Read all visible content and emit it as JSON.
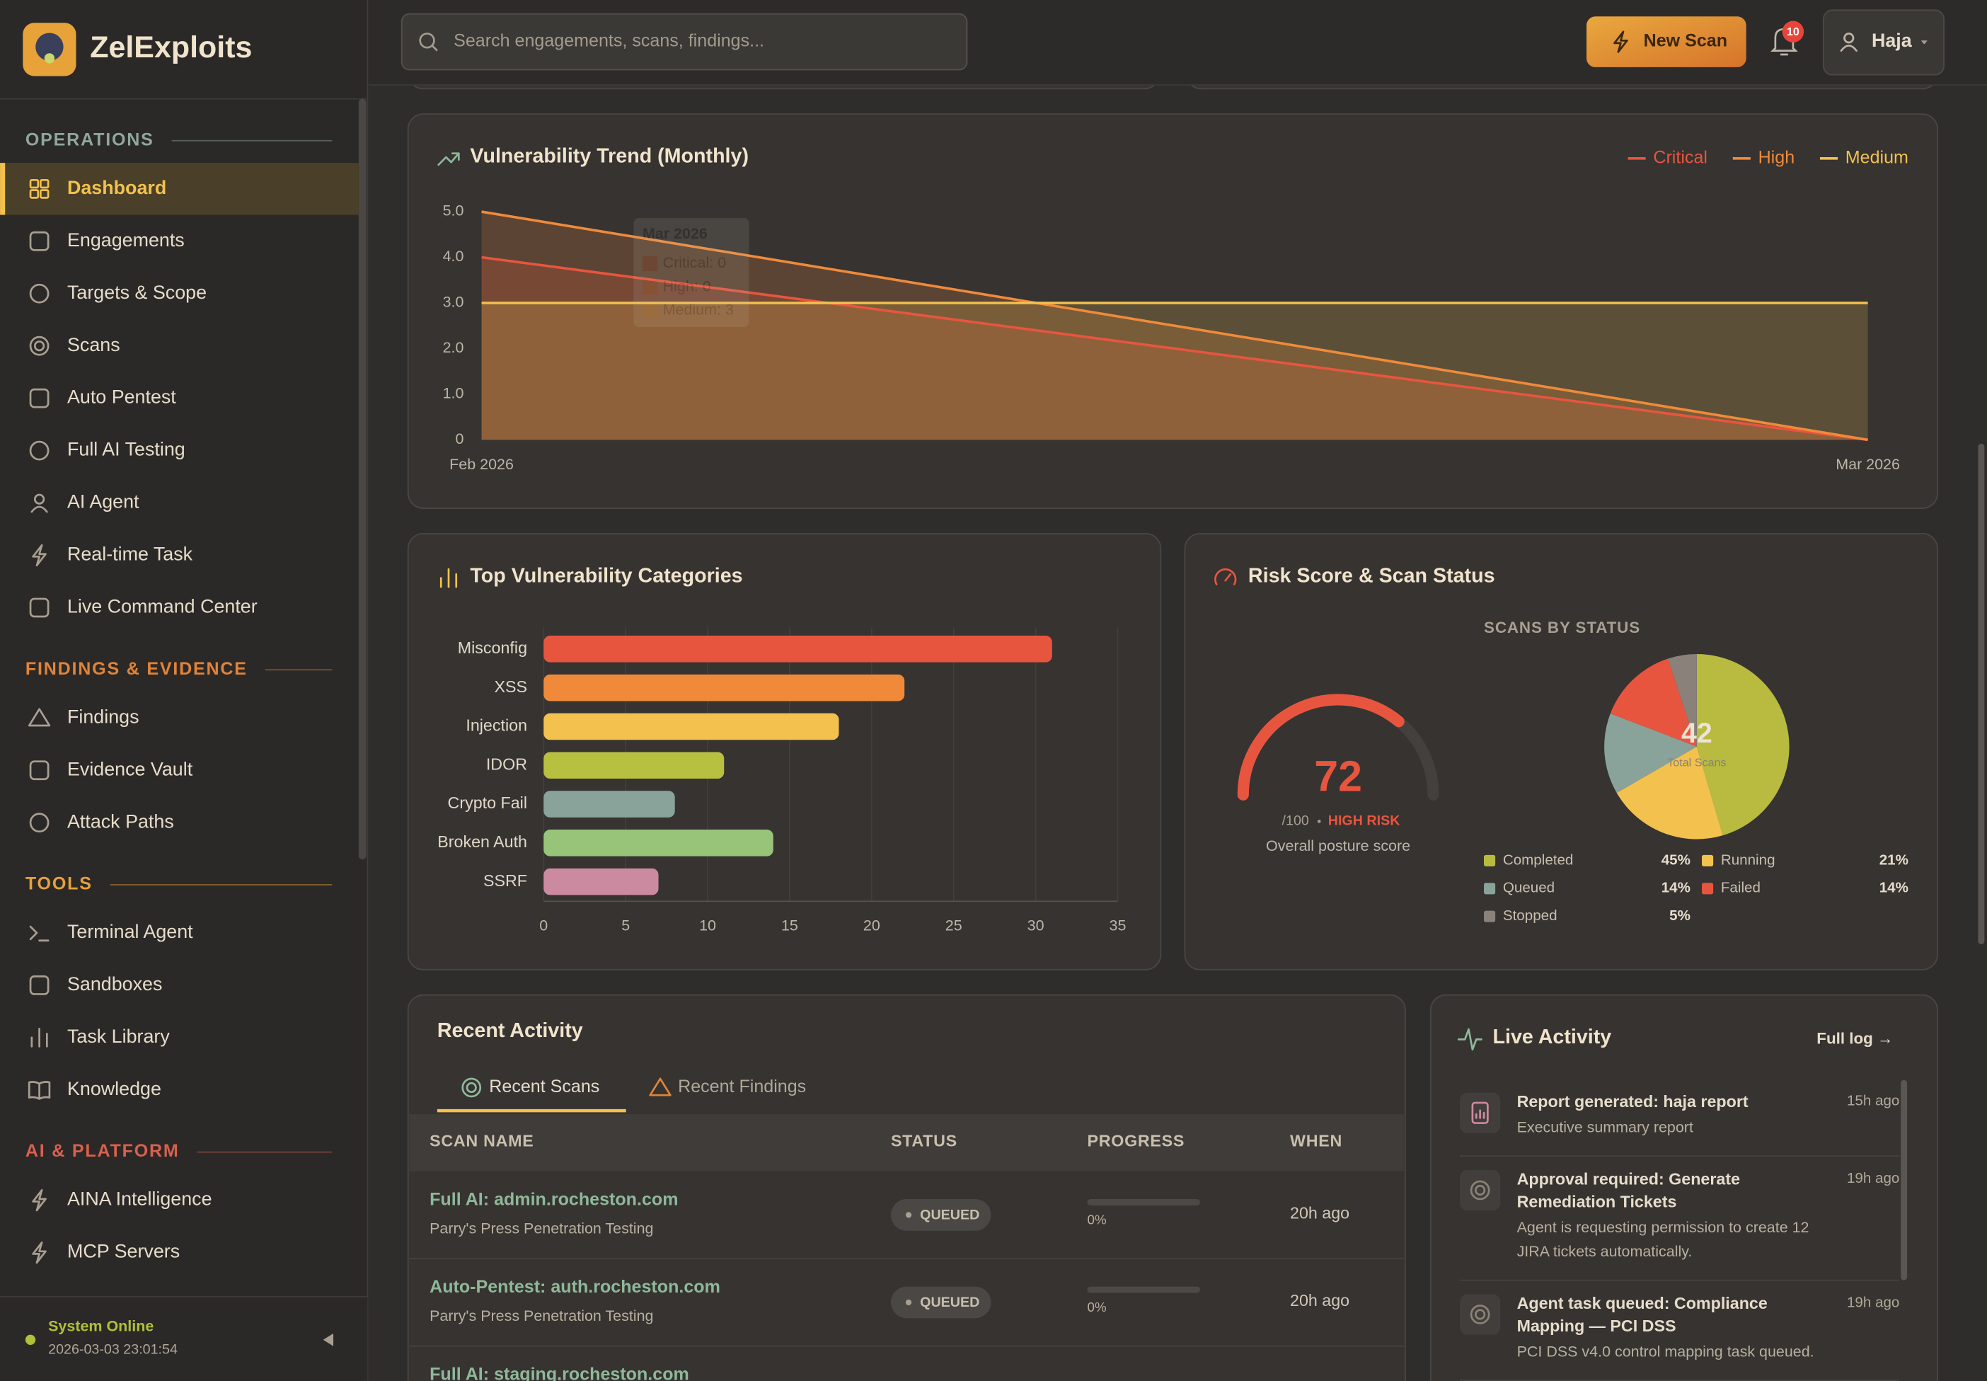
{
  "sidebar": {
    "brand": "ZelExploits",
    "nav": [
      {
        "section": "OPERATIONS",
        "color": "#8fa89c",
        "items": [
          "Dashboard",
          "Engagements",
          "Targets & Scope",
          "Scans",
          "Auto Pentest",
          "Full AI Testing",
          "AI Agent",
          "Real-time Task",
          "Live Command Center"
        ]
      },
      {
        "section": "FINDINGS & EVIDENCE",
        "color": "#e0843a",
        "items": [
          "Findings",
          "Evidence Vault",
          "Attack Paths"
        ]
      },
      {
        "section": "TOOLS",
        "color": "#e6a23c",
        "items": [
          "Terminal Agent",
          "Sandboxes",
          "Task Library",
          "Knowledge"
        ]
      },
      {
        "section": "AI & PLATFORM",
        "color": "#d9604f",
        "items": [
          "AINA Intelligence",
          "MCP Servers"
        ]
      }
    ],
    "status": {
      "label": "System Online",
      "time": "2026-03-03 23:01:54"
    }
  },
  "topbar": {
    "search_placeholder": "Search engagements, scans, findings...",
    "new_scan": "New Scan",
    "notifications": 10,
    "user": "Haja"
  },
  "chart_data": [
    {
      "type": "line",
      "title": "Vulnerability Trend (Monthly)",
      "x": [
        "Feb 2026",
        "Mar 2026"
      ],
      "series": [
        {
          "name": "Critical",
          "color": "#e8553f",
          "values": [
            4,
            0
          ]
        },
        {
          "name": "High",
          "color": "#f08a3a",
          "values": [
            5,
            0
          ]
        },
        {
          "name": "Medium",
          "color": "#f2c14e",
          "values": [
            3,
            3
          ]
        }
      ],
      "ylim": [
        0,
        5
      ],
      "yticks": [
        0,
        {
          "value": 1,
          "label": "1.0"
        },
        {
          "value": 2,
          "label": "2.0"
        },
        {
          "value": 3,
          "label": "3.0"
        },
        {
          "value": 4,
          "label": "4.0"
        },
        {
          "value": 5,
          "label": "5.0"
        }
      ],
      "grid": false,
      "legend": "top-right",
      "tooltip": {
        "title": "Mar 2026",
        "lines": [
          "Critical: 0",
          "High: 0",
          "Medium: 3"
        ]
      }
    },
    {
      "type": "bar",
      "title": "Top Vulnerability Categories",
      "categories": [
        "Misconfig",
        "XSS",
        "Injection",
        "IDOR",
        "Crypto Fail",
        "Broken Auth",
        "SSRF"
      ],
      "values": [
        31,
        22,
        18,
        11,
        8,
        14,
        7
      ],
      "colors": [
        "#e8553f",
        "#f08a3a",
        "#f2c14e",
        "#b8c040",
        "#8aa39a",
        "#98c47a",
        "#cc8aa0"
      ],
      "xlim": [
        0,
        35
      ],
      "xticks": [
        0,
        5,
        10,
        15,
        20,
        25,
        30,
        35
      ],
      "grid": true
    },
    {
      "type": "gauge",
      "value": 72,
      "lim": [
        0,
        100
      ],
      "max_label": "/100",
      "level": "HIGH RISK",
      "caption": "Overall posture score",
      "color": "#e8553f"
    },
    {
      "type": "pie",
      "title": "SCANS BY STATUS",
      "categories": [
        "Completed",
        "Running",
        "Queued",
        "Failed",
        "Stopped"
      ],
      "values": [
        45,
        21,
        14,
        14,
        5
      ],
      "value_labels": [
        "45%",
        "21%",
        "14%",
        "14%",
        "5%"
      ],
      "colors": [
        "#b8bb40",
        "#f2c14e",
        "#8aa39a",
        "#e8553f",
        "#8a817a"
      ],
      "center_value": 42,
      "center_label": "Total Scans"
    }
  ],
  "risk_panel_title": "Risk Score & Scan Status",
  "recent_activity": {
    "title": "Recent Activity",
    "tabs": [
      "Recent Scans",
      "Recent Findings"
    ],
    "columns": [
      "SCAN NAME",
      "STATUS",
      "PROGRESS",
      "WHEN"
    ],
    "rows": [
      {
        "name": "Full AI: admin.rocheston.com",
        "engagement": "Parry's Press Penetration Testing",
        "status": "QUEUED",
        "progress": {
          "value": 0,
          "label": "0%"
        },
        "when": "20h ago"
      },
      {
        "name": "Auto-Pentest: auth.rocheston.com",
        "engagement": "Parry's Press Penetration Testing",
        "status": "QUEUED",
        "progress": {
          "value": 0,
          "label": "0%"
        },
        "when": "20h ago"
      },
      {
        "name": "Full AI: staging.rocheston.com"
      }
    ]
  },
  "live_activity": {
    "title": "Live Activity",
    "full_log": "Full log →",
    "items": [
      {
        "title_lines": [
          "Report generated: haja report"
        ],
        "desc_lines": [
          "Executive summary report"
        ],
        "time": "15h ago"
      },
      {
        "title_lines": [
          "Approval required: Generate",
          "Remediation Tickets"
        ],
        "desc_lines": [
          "Agent is requesting permission to create 12",
          "JIRA tickets automatically."
        ],
        "time": "19h ago"
      },
      {
        "title_lines": [
          "Agent task queued: Compliance",
          "Mapping — PCI DSS"
        ],
        "desc_lines": [
          "PCI DSS v4.0 control mapping task queued."
        ],
        "time": "19h ago"
      }
    ]
  }
}
